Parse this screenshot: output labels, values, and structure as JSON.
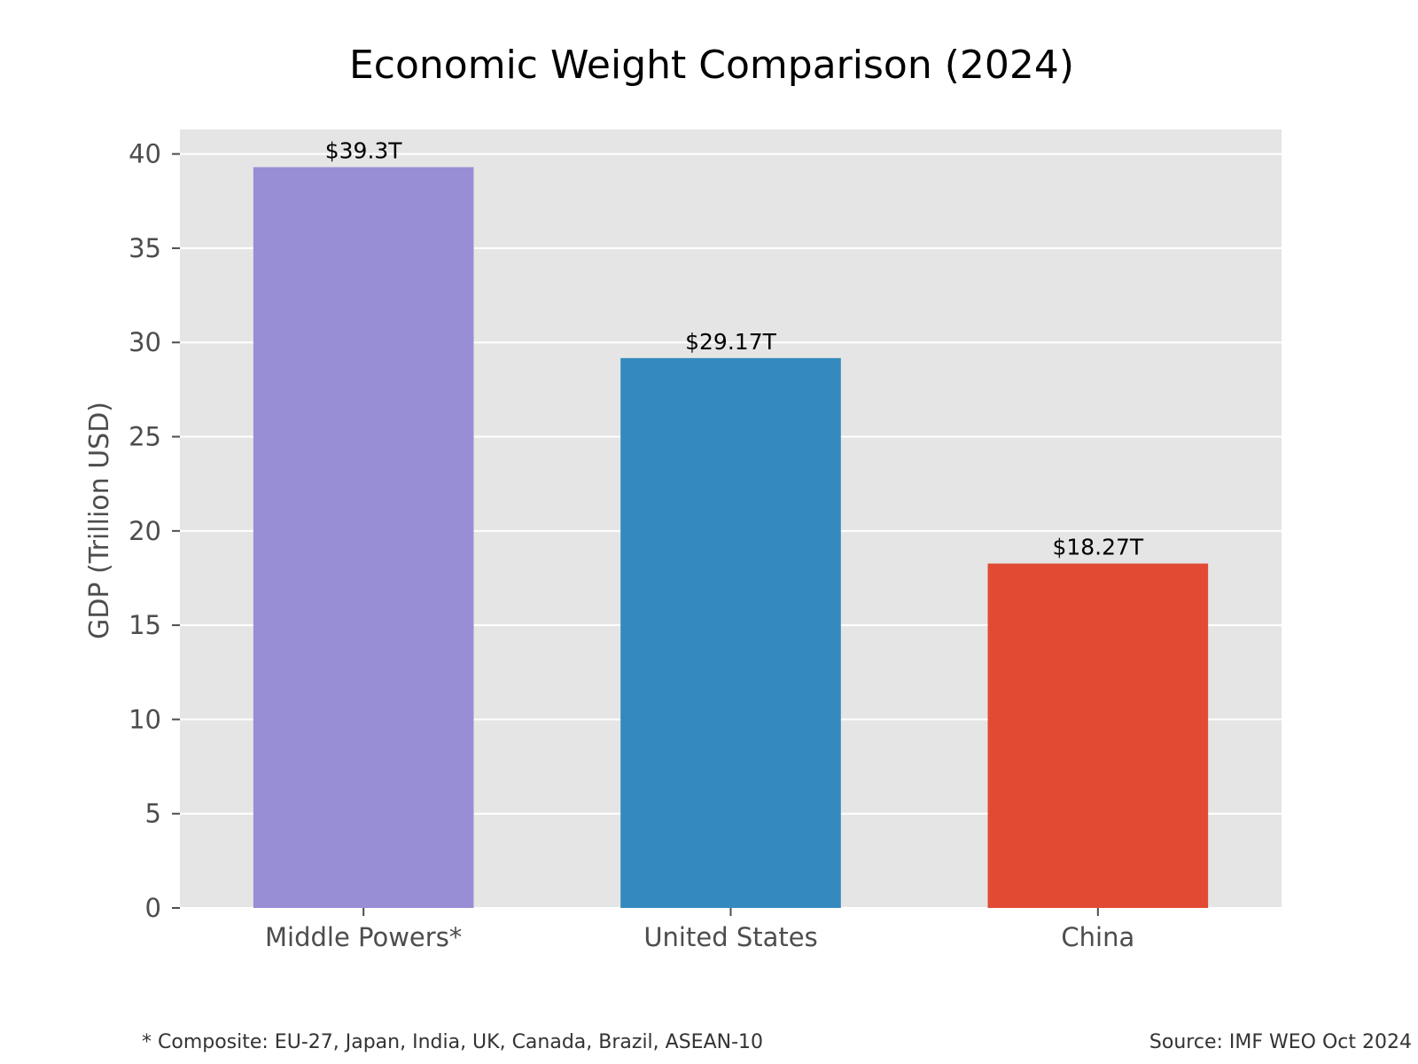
{
  "chart_data": {
    "type": "bar",
    "title": "Economic Weight Comparison (2024)",
    "xlabel": "",
    "ylabel": "GDP (Trillion USD)",
    "categories": [
      "Middle Powers*",
      "United States",
      "China"
    ],
    "values": [
      39.3,
      29.17,
      18.27
    ],
    "value_labels": [
      "$39.3T",
      "$29.17T",
      "$18.27T"
    ],
    "bar_colors": [
      "#988ED5",
      "#348ABD",
      "#E24A33"
    ],
    "ylim": [
      0,
      41.3
    ],
    "yticks": [
      0,
      5,
      10,
      15,
      20,
      25,
      30,
      35,
      40
    ],
    "grid": true,
    "plot_background": "#E5E5E5",
    "grid_color": "#FFFFFF"
  },
  "footnote": "* Composite: EU-27, Japan, India, UK, Canada, Brazil, ASEAN-10",
  "source": "Source: IMF WEO Oct 2024"
}
